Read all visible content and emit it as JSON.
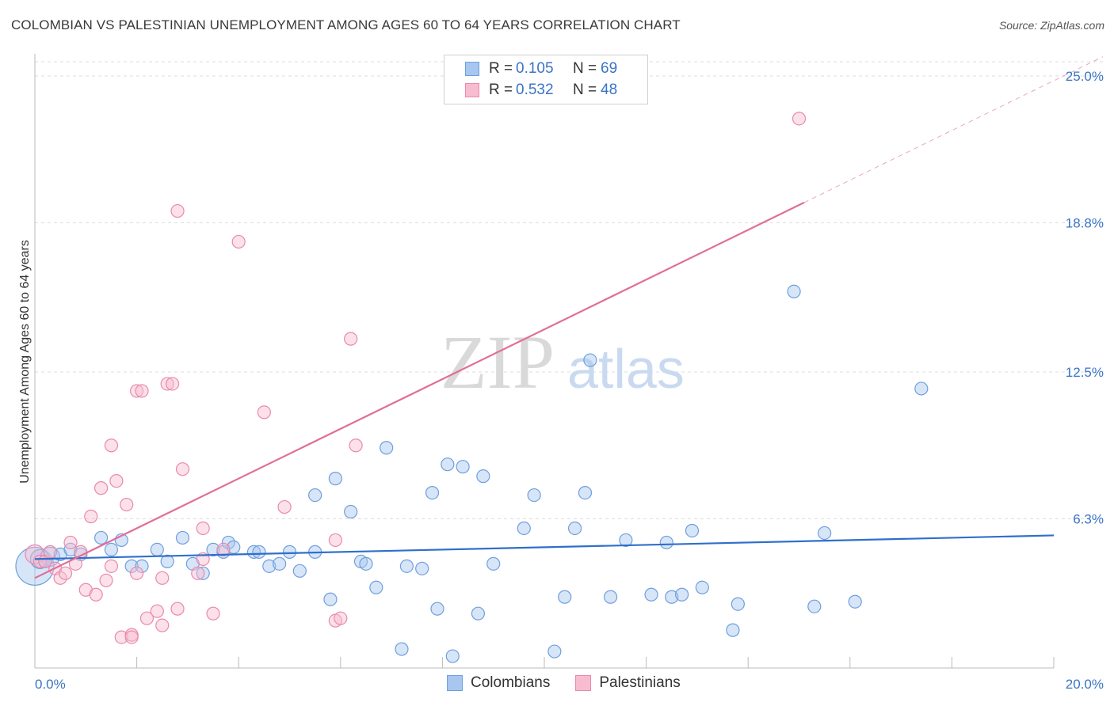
{
  "title": "COLOMBIAN VS PALESTINIAN UNEMPLOYMENT AMONG AGES 60 TO 64 YEARS CORRELATION CHART",
  "source": "Source: ZipAtlas.com",
  "watermark": {
    "zip": "ZIP",
    "atlas": "atlas"
  },
  "legend": {
    "r_label": "R =",
    "n_label": "N =",
    "rows": [
      {
        "r": "0.105",
        "n": "69",
        "color": "#a7c6f0",
        "border": "#6f9fdc"
      },
      {
        "r": "0.532",
        "n": "48",
        "color": "#f8bcd0",
        "border": "#e88aab"
      }
    ]
  },
  "bottom_legend": [
    {
      "label": "Colombians",
      "color": "#a7c6f0",
      "border": "#6f9fdc"
    },
    {
      "label": "Palestinians",
      "color": "#f8bcd0",
      "border": "#e88aab"
    }
  ],
  "chart_data": {
    "type": "scatter",
    "title": "COLOMBIAN VS PALESTINIAN UNEMPLOYMENT AMONG AGES 60 TO 64 YEARS CORRELATION CHART",
    "xlabel": "",
    "ylabel": "Unemployment Among Ages 60 to 64 years",
    "xlim": [
      0,
      20
    ],
    "ylim": [
      0,
      25
    ],
    "x_tick_labels": [
      {
        "value": 0,
        "label": "0.0%"
      },
      {
        "value": 20,
        "label": "20.0%"
      }
    ],
    "y_tick_labels": [
      {
        "value": 6.3,
        "label": "6.3%"
      },
      {
        "value": 12.5,
        "label": "12.5%"
      },
      {
        "value": 18.8,
        "label": "18.8%"
      },
      {
        "value": 25.0,
        "label": "25.0%"
      }
    ],
    "gridlines": [
      6.3,
      12.5,
      18.8,
      25.0
    ],
    "series": [
      {
        "name": "Colombians",
        "fill": "#a7c6f0",
        "stroke": "#6f9fdc",
        "line_color": "#2f6fcc",
        "trend": {
          "x0": 0,
          "y0": 4.6,
          "x1": 20,
          "y1": 5.6,
          "dashed_from": null
        },
        "points": [
          [
            0.0,
            4.3,
            3
          ],
          [
            0.1,
            4.6,
            1.5
          ],
          [
            0.3,
            4.7,
            1.5
          ],
          [
            0.5,
            4.8,
            1
          ],
          [
            1.3,
            5.5,
            1
          ],
          [
            1.5,
            5.0,
            1
          ],
          [
            1.7,
            5.4,
            1
          ],
          [
            1.9,
            4.3,
            1
          ],
          [
            2.1,
            4.3,
            1
          ],
          [
            2.4,
            5.0,
            1
          ],
          [
            2.6,
            4.5,
            1
          ],
          [
            2.9,
            5.5,
            1
          ],
          [
            3.1,
            4.4,
            1
          ],
          [
            3.3,
            4.0,
            1
          ],
          [
            3.5,
            5.0,
            1
          ],
          [
            3.7,
            4.9,
            1
          ],
          [
            3.8,
            5.3,
            1
          ],
          [
            3.9,
            5.1,
            1
          ],
          [
            4.3,
            4.9,
            1
          ],
          [
            4.4,
            4.9,
            1
          ],
          [
            4.6,
            4.3,
            1
          ],
          [
            4.8,
            4.4,
            1
          ],
          [
            5.0,
            4.9,
            1
          ],
          [
            5.2,
            4.1,
            1
          ],
          [
            5.5,
            4.9,
            1
          ],
          [
            5.5,
            7.3,
            1
          ],
          [
            5.8,
            2.9,
            1
          ],
          [
            5.9,
            8.0,
            1
          ],
          [
            6.2,
            6.6,
            1
          ],
          [
            6.4,
            4.5,
            1
          ],
          [
            6.5,
            4.4,
            1
          ],
          [
            6.7,
            3.4,
            1
          ],
          [
            6.9,
            9.3,
            1
          ],
          [
            7.2,
            0.8,
            1
          ],
          [
            7.3,
            4.3,
            1
          ],
          [
            7.6,
            4.2,
            1
          ],
          [
            7.8,
            7.4,
            1
          ],
          [
            7.9,
            2.5,
            1
          ],
          [
            8.1,
            8.6,
            1
          ],
          [
            8.2,
            0.5,
            1
          ],
          [
            8.4,
            8.5,
            1
          ],
          [
            8.7,
            2.3,
            1
          ],
          [
            8.8,
            8.1,
            1
          ],
          [
            9.0,
            4.4,
            1
          ],
          [
            9.6,
            5.9,
            1
          ],
          [
            9.8,
            7.3,
            1
          ],
          [
            10.2,
            0.7,
            1
          ],
          [
            10.4,
            3.0,
            1
          ],
          [
            10.6,
            5.9,
            1
          ],
          [
            10.8,
            7.4,
            1
          ],
          [
            10.9,
            13.0,
            1
          ],
          [
            11.3,
            3.0,
            1
          ],
          [
            11.6,
            5.4,
            1
          ],
          [
            12.1,
            3.1,
            1
          ],
          [
            12.4,
            5.3,
            1
          ],
          [
            12.5,
            3.0,
            1
          ],
          [
            12.7,
            3.1,
            1
          ],
          [
            12.9,
            5.8,
            1
          ],
          [
            13.1,
            3.4,
            1
          ],
          [
            13.8,
            2.7,
            1
          ],
          [
            13.7,
            1.6,
            1
          ],
          [
            14.9,
            15.9,
            1
          ],
          [
            15.3,
            2.6,
            1
          ],
          [
            15.5,
            5.7,
            1
          ],
          [
            16.1,
            2.8,
            1
          ],
          [
            17.4,
            11.8,
            1
          ],
          [
            0.7,
            5.0,
            1
          ],
          [
            0.9,
            4.8,
            1
          ],
          [
            0.2,
            4.5,
            1
          ]
        ]
      },
      {
        "name": "Palestinians",
        "fill": "#f8bcd0",
        "stroke": "#e88aab",
        "line_color": "#e06e98",
        "trend": {
          "x0": 0,
          "y0": 3.8,
          "x1": 20,
          "y1": 24.8,
          "dashed_from": 15.1
        },
        "points": [
          [
            0.0,
            4.8,
            1.5
          ],
          [
            0.1,
            4.5,
            1
          ],
          [
            0.2,
            4.5,
            1
          ],
          [
            0.3,
            4.9,
            1
          ],
          [
            0.4,
            4.2,
            1
          ],
          [
            0.5,
            3.8,
            1
          ],
          [
            0.6,
            4.0,
            1
          ],
          [
            0.7,
            5.3,
            1
          ],
          [
            0.8,
            4.4,
            1
          ],
          [
            0.9,
            4.9,
            1
          ],
          [
            1.0,
            3.3,
            1
          ],
          [
            1.1,
            6.4,
            1
          ],
          [
            1.2,
            3.1,
            1
          ],
          [
            1.3,
            7.6,
            1
          ],
          [
            1.4,
            3.7,
            1
          ],
          [
            1.5,
            4.3,
            1
          ],
          [
            1.5,
            9.4,
            1
          ],
          [
            1.6,
            7.9,
            1
          ],
          [
            1.7,
            1.3,
            1
          ],
          [
            1.8,
            6.9,
            1
          ],
          [
            1.9,
            1.4,
            1
          ],
          [
            1.9,
            1.3,
            1
          ],
          [
            2.0,
            4.0,
            1
          ],
          [
            2.0,
            11.7,
            1
          ],
          [
            2.1,
            11.7,
            1
          ],
          [
            2.2,
            2.1,
            1
          ],
          [
            2.4,
            2.4,
            1
          ],
          [
            2.5,
            3.8,
            1
          ],
          [
            2.5,
            1.8,
            1
          ],
          [
            2.6,
            12.0,
            1
          ],
          [
            2.7,
            12.0,
            1
          ],
          [
            2.8,
            2.5,
            1
          ],
          [
            2.8,
            19.3,
            1
          ],
          [
            2.9,
            8.4,
            1
          ],
          [
            3.2,
            4.0,
            1
          ],
          [
            3.3,
            5.9,
            1
          ],
          [
            3.5,
            2.3,
            1
          ],
          [
            3.7,
            5.0,
            1
          ],
          [
            4.0,
            18.0,
            1
          ],
          [
            4.5,
            10.8,
            1
          ],
          [
            4.9,
            6.8,
            1
          ],
          [
            5.9,
            5.4,
            1
          ],
          [
            5.9,
            2.0,
            1
          ],
          [
            6.0,
            2.1,
            1
          ],
          [
            6.2,
            13.9,
            1
          ],
          [
            6.3,
            9.4,
            1
          ],
          [
            15.0,
            23.2,
            1
          ],
          [
            3.3,
            4.6,
            1
          ]
        ]
      }
    ]
  }
}
